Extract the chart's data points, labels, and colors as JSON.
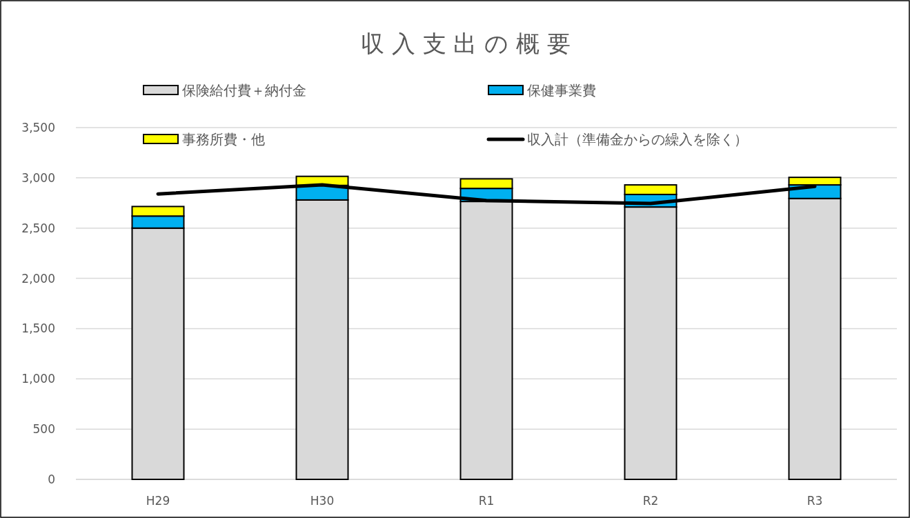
{
  "chart_data": {
    "type": "bar",
    "title": "収 入 支 出 の 概 要",
    "stacked": true,
    "categories": [
      "H29",
      "H30",
      "R1",
      "R2",
      "R3"
    ],
    "series": [
      {
        "name": "保険給付費＋納付金",
        "color": "#d9d9d9",
        "values": [
          2500,
          2780,
          2765,
          2710,
          2795
        ]
      },
      {
        "name": "保健事業費",
        "color": "#00b0f0",
        "values": [
          120,
          145,
          130,
          125,
          135
        ]
      },
      {
        "name": "事務所費・他",
        "color": "#ffff00",
        "values": [
          95,
          90,
          95,
          95,
          75
        ]
      },
      {
        "name": "収入計（準備金からの繰入を除く）",
        "type": "line",
        "color": "#000000",
        "values": [
          2840,
          2930,
          2775,
          2745,
          2915
        ]
      }
    ],
    "ylim": [
      0,
      3500
    ],
    "yticks": [
      {
        "value": 0,
        "label": "0"
      },
      {
        "value": 500,
        "label": "500"
      },
      {
        "value": 1000,
        "label": "1,000"
      },
      {
        "value": 1500,
        "label": "1,500"
      },
      {
        "value": 2000,
        "label": "2,000"
      },
      {
        "value": 2500,
        "label": "2,500"
      },
      {
        "value": 3000,
        "label": "3,000"
      },
      {
        "value": 3500,
        "label": "3,500"
      }
    ],
    "grid": "y",
    "legend": "top"
  }
}
